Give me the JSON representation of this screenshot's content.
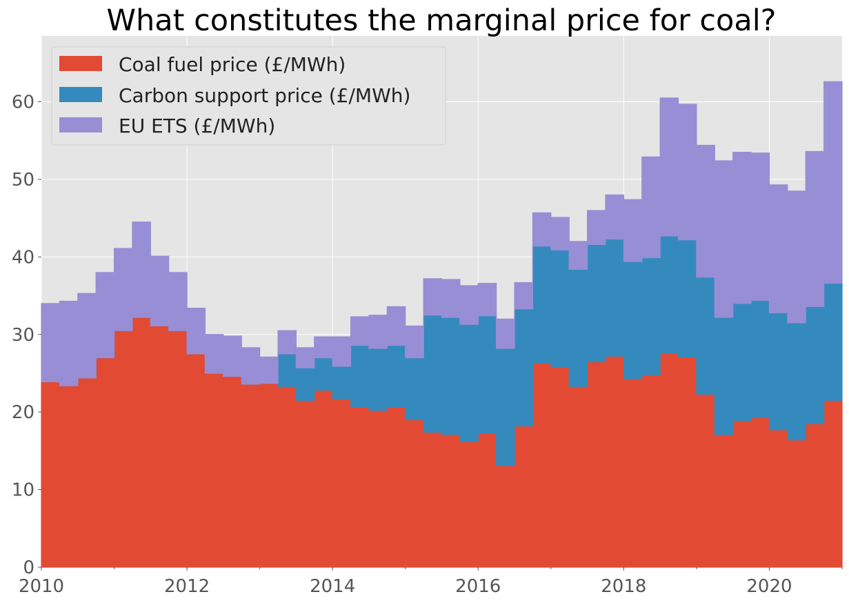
{
  "chart_data": {
    "type": "area",
    "title": "What constitutes the marginal price for coal?",
    "xlabel": "",
    "ylabel": "",
    "xlim": [
      2010.0,
      2021.0
    ],
    "ylim": [
      0,
      68.5
    ],
    "x_ticks": [
      2010,
      2012,
      2014,
      2016,
      2018,
      2020
    ],
    "x_tick_labels": [
      "2010",
      "2012",
      "2014",
      "2016",
      "2018",
      "2020"
    ],
    "y_ticks": [
      0,
      10,
      20,
      30,
      40,
      50,
      60
    ],
    "y_tick_labels": [
      "0",
      "10",
      "20",
      "30",
      "40",
      "50",
      "60"
    ],
    "grid": true,
    "legend_position": "upper-left",
    "stacked": true,
    "step": "quarterly",
    "quarters": [
      "2010 Q1",
      "2010 Q2",
      "2010 Q3",
      "2010 Q4",
      "2011 Q1",
      "2011 Q2",
      "2011 Q3",
      "2011 Q4",
      "2012 Q1",
      "2012 Q2",
      "2012 Q3",
      "2012 Q4",
      "2013 Q1",
      "2013 Q2",
      "2013 Q3",
      "2013 Q4",
      "2014 Q1",
      "2014 Q2",
      "2014 Q3",
      "2014 Q4",
      "2015 Q1",
      "2015 Q2",
      "2015 Q3",
      "2015 Q4",
      "2016 Q1",
      "2016 Q2",
      "2016 Q3",
      "2016 Q4",
      "2017 Q1",
      "2017 Q2",
      "2017 Q3",
      "2017 Q4",
      "2018 Q1",
      "2018 Q2",
      "2018 Q3",
      "2018 Q4",
      "2019 Q1",
      "2019 Q2",
      "2019 Q3",
      "2019 Q4",
      "2020 Q1",
      "2020 Q2",
      "2020 Q3",
      "2020 Q4"
    ],
    "x_start": [
      2010.0,
      2010.25,
      2010.5,
      2010.75,
      2011.0,
      2011.25,
      2011.5,
      2011.75,
      2012.0,
      2012.25,
      2012.5,
      2012.75,
      2013.0,
      2013.25,
      2013.5,
      2013.75,
      2014.0,
      2014.25,
      2014.5,
      2014.75,
      2015.0,
      2015.25,
      2015.5,
      2015.75,
      2016.0,
      2016.25,
      2016.5,
      2016.75,
      2017.0,
      2017.25,
      2017.5,
      2017.75,
      2018.0,
      2018.25,
      2018.5,
      2018.75,
      2019.0,
      2019.25,
      2019.5,
      2019.75,
      2020.0,
      2020.25,
      2020.5,
      2020.75
    ],
    "series": [
      {
        "name": "Coal fuel price (£/MWh)",
        "color": "#E24A33",
        "values": [
          23.9,
          23.4,
          24.4,
          27.0,
          30.5,
          32.2,
          31.1,
          30.5,
          27.5,
          25.0,
          24.6,
          23.6,
          23.7,
          23.3,
          21.5,
          22.8,
          21.7,
          20.6,
          20.2,
          20.6,
          19.0,
          17.4,
          17.1,
          16.2,
          17.3,
          13.1,
          18.2,
          26.3,
          25.8,
          23.3,
          26.5,
          27.2,
          24.3,
          24.8,
          27.6,
          27.1,
          22.3,
          17.1,
          18.9,
          19.3,
          17.7,
          16.4,
          18.5,
          21.5
        ]
      },
      {
        "name": "Carbon support price (£/MWh)",
        "color": "#348ABD",
        "values": [
          0,
          0,
          0,
          0,
          0,
          0,
          0,
          0,
          0,
          0,
          0,
          0,
          0,
          4.2,
          4.2,
          4.2,
          4.2,
          8.0,
          8.0,
          8.0,
          8.0,
          15.1,
          15.1,
          15.1,
          15.1,
          15.1,
          15.1,
          15.1,
          15.1,
          15.1,
          15.1,
          15.1,
          15.1,
          15.1,
          15.1,
          15.1,
          15.1,
          15.1,
          15.1,
          15.1,
          15.1,
          15.1,
          15.1,
          15.1
        ]
      },
      {
        "name": "EU ETS (£/MWh)",
        "color": "#988ED5",
        "values": [
          10.1,
          10.9,
          10.9,
          11.0,
          10.6,
          12.3,
          9.0,
          7.5,
          5.9,
          5.0,
          5.2,
          4.7,
          3.4,
          3.0,
          2.6,
          2.7,
          3.8,
          3.7,
          4.3,
          5.0,
          4.1,
          4.7,
          4.9,
          5.0,
          4.2,
          3.8,
          3.4,
          4.3,
          4.2,
          3.6,
          4.4,
          5.7,
          8.0,
          13.0,
          17.8,
          17.5,
          17.0,
          20.2,
          19.5,
          19.0,
          16.5,
          17.0,
          20.0,
          26.0
        ]
      }
    ]
  }
}
